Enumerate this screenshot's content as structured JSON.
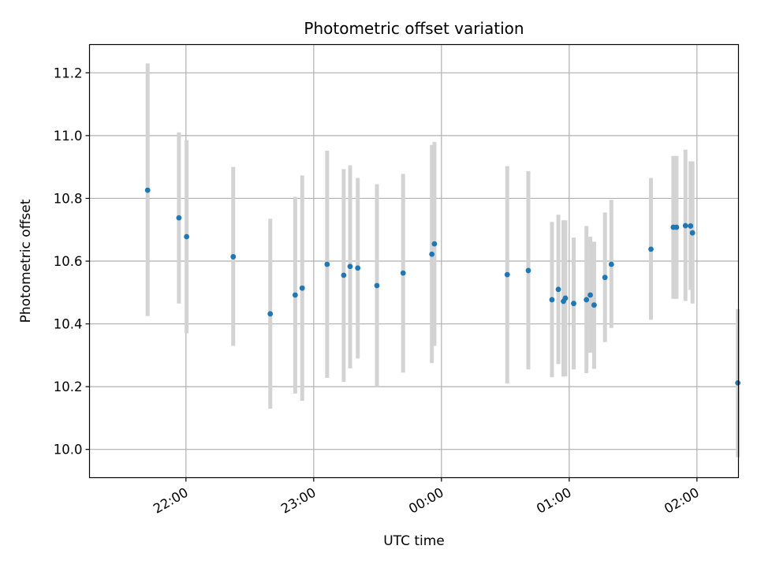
{
  "chart_data": {
    "type": "scatter",
    "title": "Photometric offset variation",
    "xlabel": "UTC time",
    "ylabel": "Photometric offset",
    "x_unit": "hours (UTC, 24 = next day 00:00)",
    "xlim": [
      21.245,
      26.325
    ],
    "ylim": [
      9.91,
      11.29
    ],
    "x_ticks": [
      {
        "value": 22,
        "label": "22:00"
      },
      {
        "value": 23,
        "label": "23:00"
      },
      {
        "value": 24,
        "label": "00:00"
      },
      {
        "value": 25,
        "label": "01:00"
      },
      {
        "value": 26,
        "label": "02:00"
      }
    ],
    "y_ticks": [
      {
        "value": 10.0,
        "label": "10.0"
      },
      {
        "value": 10.2,
        "label": "10.2"
      },
      {
        "value": 10.4,
        "label": "10.4"
      },
      {
        "value": 10.6,
        "label": "10.6"
      },
      {
        "value": 10.8,
        "label": "10.8"
      },
      {
        "value": 11.0,
        "label": "11.0"
      },
      {
        "value": 11.2,
        "label": "11.2"
      }
    ],
    "grid": true,
    "colors": {
      "marker": "#1f77b4",
      "errorbar": "#d3d3d3",
      "grid": "#b0b0b0"
    },
    "points": [
      {
        "x": 21.7,
        "y": 10.826,
        "lo": 10.425,
        "hi": 11.23
      },
      {
        "x": 21.945,
        "y": 10.738,
        "lo": 10.465,
        "hi": 11.01
      },
      {
        "x": 22.005,
        "y": 10.678,
        "lo": 10.37,
        "hi": 10.985
      },
      {
        "x": 22.37,
        "y": 10.614,
        "lo": 10.33,
        "hi": 10.9
      },
      {
        "x": 22.66,
        "y": 10.432,
        "lo": 10.13,
        "hi": 10.735
      },
      {
        "x": 22.855,
        "y": 10.492,
        "lo": 10.178,
        "hi": 10.805
      },
      {
        "x": 22.91,
        "y": 10.514,
        "lo": 10.155,
        "hi": 10.873
      },
      {
        "x": 23.105,
        "y": 10.59,
        "lo": 10.228,
        "hi": 10.952
      },
      {
        "x": 23.235,
        "y": 10.555,
        "lo": 10.215,
        "hi": 10.893
      },
      {
        "x": 23.285,
        "y": 10.583,
        "lo": 10.258,
        "hi": 10.905
      },
      {
        "x": 23.345,
        "y": 10.578,
        "lo": 10.29,
        "hi": 10.865
      },
      {
        "x": 23.495,
        "y": 10.522,
        "lo": 10.2,
        "hi": 10.845
      },
      {
        "x": 23.7,
        "y": 10.562,
        "lo": 10.245,
        "hi": 10.878
      },
      {
        "x": 23.925,
        "y": 10.622,
        "lo": 10.275,
        "hi": 10.97
      },
      {
        "x": 23.945,
        "y": 10.655,
        "lo": 10.33,
        "hi": 10.98
      },
      {
        "x": 24.515,
        "y": 10.557,
        "lo": 10.21,
        "hi": 10.903
      },
      {
        "x": 24.68,
        "y": 10.57,
        "lo": 10.255,
        "hi": 10.887
      },
      {
        "x": 24.865,
        "y": 10.477,
        "lo": 10.23,
        "hi": 10.725
      },
      {
        "x": 24.915,
        "y": 10.51,
        "lo": 10.272,
        "hi": 10.748
      },
      {
        "x": 24.955,
        "y": 10.472,
        "lo": 10.232,
        "hi": 10.73
      },
      {
        "x": 24.97,
        "y": 10.482,
        "lo": 10.233,
        "hi": 10.73
      },
      {
        "x": 25.035,
        "y": 10.465,
        "lo": 10.255,
        "hi": 10.675
      },
      {
        "x": 25.135,
        "y": 10.477,
        "lo": 10.243,
        "hi": 10.712
      },
      {
        "x": 25.165,
        "y": 10.492,
        "lo": 10.308,
        "hi": 10.678
      },
      {
        "x": 25.195,
        "y": 10.46,
        "lo": 10.257,
        "hi": 10.662
      },
      {
        "x": 25.28,
        "y": 10.548,
        "lo": 10.342,
        "hi": 10.755
      },
      {
        "x": 25.33,
        "y": 10.59,
        "lo": 10.387,
        "hi": 10.795
      },
      {
        "x": 25.64,
        "y": 10.638,
        "lo": 10.413,
        "hi": 10.865
      },
      {
        "x": 25.815,
        "y": 10.708,
        "lo": 10.48,
        "hi": 10.935
      },
      {
        "x": 25.84,
        "y": 10.708,
        "lo": 10.48,
        "hi": 10.935
      },
      {
        "x": 25.91,
        "y": 10.713,
        "lo": 10.473,
        "hi": 10.955
      },
      {
        "x": 25.95,
        "y": 10.712,
        "lo": 10.508,
        "hi": 10.918
      },
      {
        "x": 25.965,
        "y": 10.69,
        "lo": 10.465,
        "hi": 10.918
      },
      {
        "x": 26.32,
        "y": 10.212,
        "lo": 9.975,
        "hi": 10.447
      }
    ]
  }
}
